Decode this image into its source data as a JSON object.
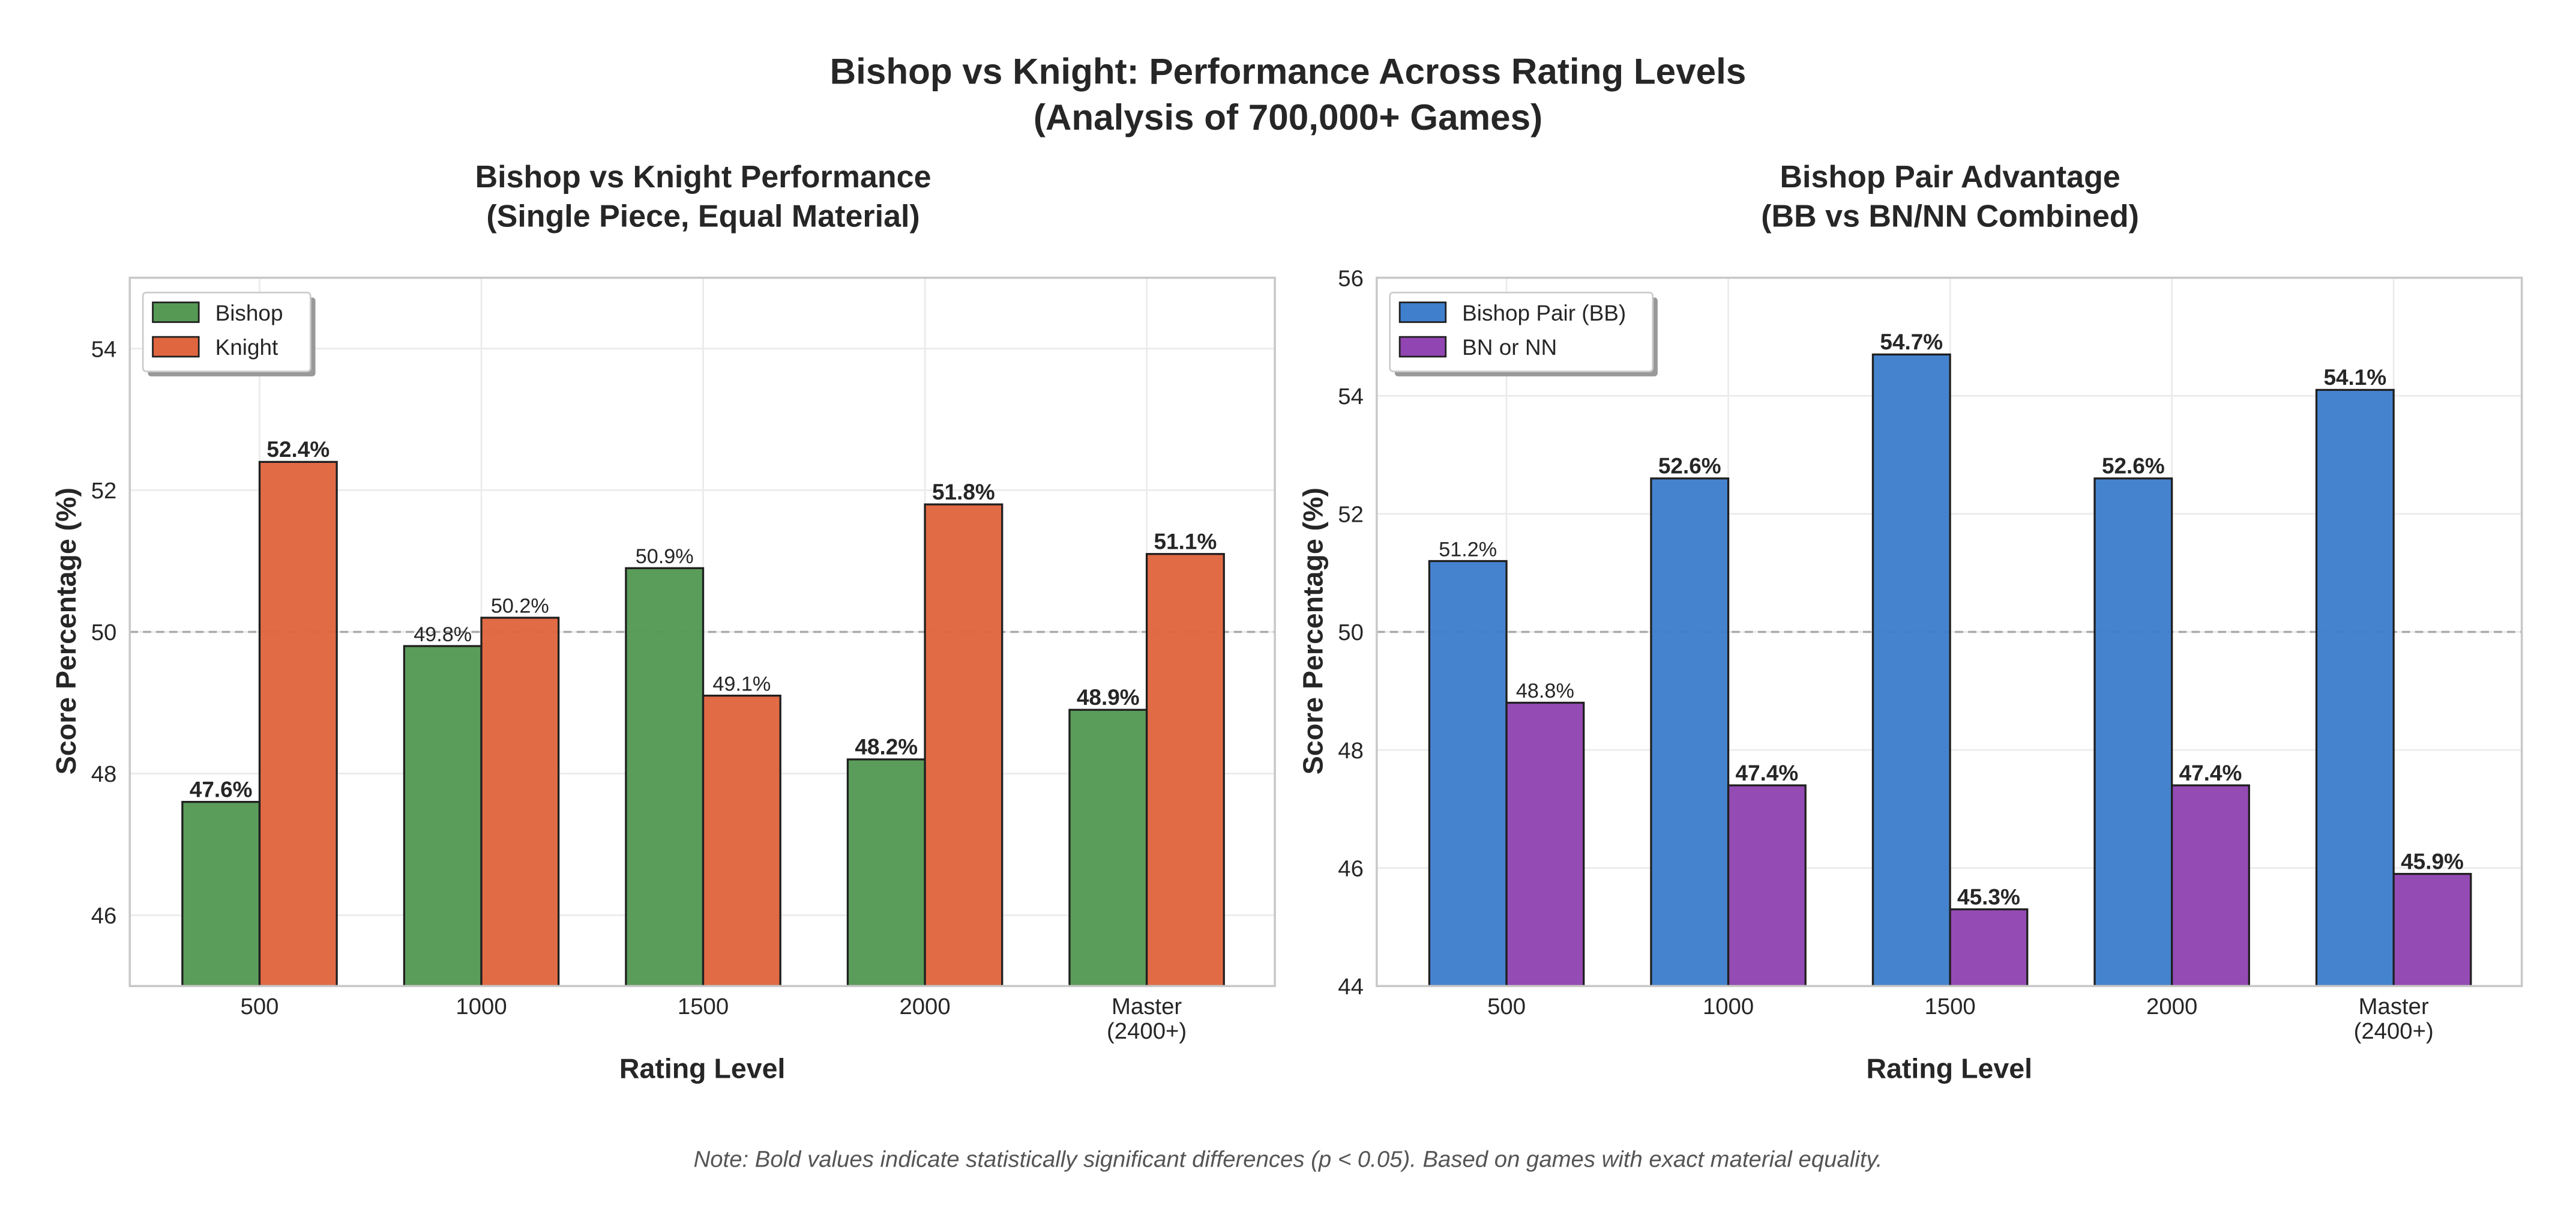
{
  "suptitle": [
    "Bishop vs Knight: Performance Across Rating Levels",
    "(Analysis of 700,000+ Games)"
  ],
  "note": "Note: Bold values indicate statistically significant differences (p < 0.05). Based on games with exact material equality.",
  "chart_data": [
    {
      "type": "bar",
      "title": [
        "Bishop vs Knight Performance",
        "(Single Piece, Equal Material)"
      ],
      "xlabel": "Rating Level",
      "ylabel": "Score Percentage (%)",
      "categories": [
        [
          "500"
        ],
        [
          "1000"
        ],
        [
          "1500"
        ],
        [
          "2000"
        ],
        [
          "Master",
          "(2400+)"
        ]
      ],
      "ylim": [
        45,
        55
      ],
      "yticks": [
        46,
        48,
        50,
        52,
        54
      ],
      "reference_line": 50,
      "grid": true,
      "legend_position": "top-left",
      "series": [
        {
          "name": "Bishop",
          "color": "#559955",
          "values": [
            47.6,
            49.8,
            50.9,
            48.2,
            48.9
          ],
          "labels": [
            "47.6%",
            "49.8%",
            "50.9%",
            "48.2%",
            "48.9%"
          ],
          "significant": [
            true,
            false,
            false,
            true,
            true
          ]
        },
        {
          "name": "Knight",
          "color": "#e0663f",
          "values": [
            52.4,
            50.2,
            49.1,
            51.8,
            51.1
          ],
          "labels": [
            "52.4%",
            "50.2%",
            "49.1%",
            "51.8%",
            "51.1%"
          ],
          "significant": [
            true,
            false,
            false,
            true,
            true
          ]
        }
      ]
    },
    {
      "type": "bar",
      "title": [
        "Bishop Pair Advantage",
        "(BB vs BN/NN Combined)"
      ],
      "xlabel": "Rating Level",
      "ylabel": "Score Percentage (%)",
      "categories": [
        [
          "500"
        ],
        [
          "1000"
        ],
        [
          "1500"
        ],
        [
          "2000"
        ],
        [
          "Master",
          "(2400+)"
        ]
      ],
      "ylim": [
        44,
        56
      ],
      "yticks": [
        44,
        46,
        48,
        50,
        52,
        54,
        56
      ],
      "reference_line": 50,
      "grid": true,
      "legend_position": "top-left",
      "series": [
        {
          "name": "Bishop Pair (BB)",
          "color": "#3f7fcc",
          "values": [
            51.2,
            52.6,
            54.7,
            52.6,
            54.1
          ],
          "labels": [
            "51.2%",
            "52.6%",
            "54.7%",
            "52.6%",
            "54.1%"
          ],
          "significant": [
            false,
            true,
            true,
            true,
            true
          ]
        },
        {
          "name": "BN or NN",
          "color": "#9145b2",
          "values": [
            48.8,
            47.4,
            45.3,
            47.4,
            45.9
          ],
          "labels": [
            "48.8%",
            "47.4%",
            "45.3%",
            "47.4%",
            "45.9%"
          ],
          "significant": [
            false,
            true,
            true,
            true,
            true
          ]
        }
      ]
    }
  ]
}
